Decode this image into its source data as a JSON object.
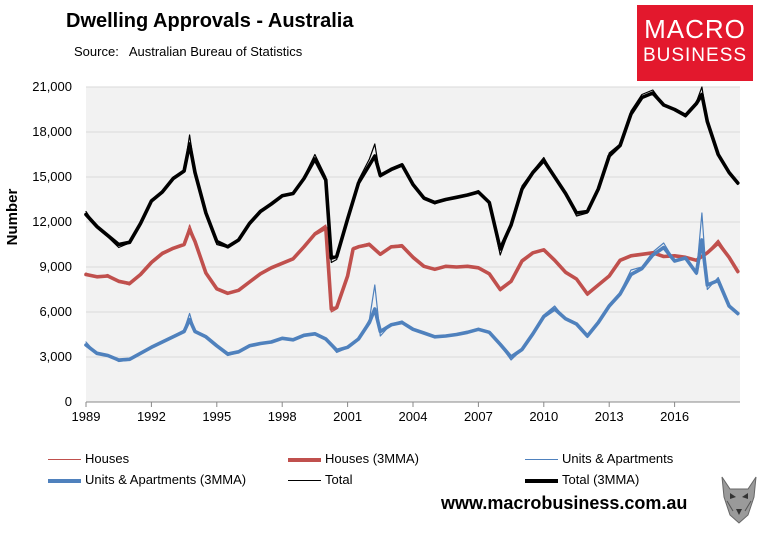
{
  "header": {
    "title": "Dwelling Approvals - Australia",
    "source_label": "Source:",
    "source_value": "Australian Bureau of Statistics"
  },
  "logo": {
    "line1": "MACRO",
    "line2": "BUSINESS"
  },
  "footer": {
    "url": "www.macrobusiness.com.au"
  },
  "colors": {
    "houses": "#c0504d",
    "units": "#4f81bd",
    "total": "#000000",
    "plot_bg": "#f2f2f2"
  },
  "chart_data": {
    "type": "line",
    "title": "Dwelling Approvals - Australia",
    "ylabel": "Number",
    "xlabel": "",
    "xlim": [
      1989.0,
      2019.0
    ],
    "ylim": [
      0,
      21000
    ],
    "yticks": [
      0,
      3000,
      6000,
      9000,
      12000,
      15000,
      18000,
      21000
    ],
    "ytick_labels": [
      "0",
      "3,000",
      "6,000",
      "9,000",
      "12,000",
      "15,000",
      "18,000",
      "21,000"
    ],
    "xticks": [
      1989,
      1992,
      1995,
      1998,
      2001,
      2004,
      2007,
      2010,
      2013,
      2016
    ],
    "xtick_labels": [
      "1989",
      "1992",
      "1995",
      "1998",
      "2001",
      "2004",
      "2007",
      "2010",
      "2013",
      "2016"
    ],
    "legend_position": "bottom",
    "legend": [
      "Houses",
      "Houses (3MMA)",
      "Units & Apartments",
      "Units & Apartments (3MMA)",
      "Total",
      "Total (3MMA)"
    ],
    "series": [
      {
        "name": "Houses",
        "color": "#c0504d",
        "width": 1.2,
        "x": [
          1989.0,
          1989.5,
          1990.0,
          1990.5,
          1991.0,
          1991.5,
          1992.0,
          1992.5,
          1993.0,
          1993.5,
          1993.75,
          1994.0,
          1994.5,
          1995.0,
          1995.5,
          1996.0,
          1996.5,
          1997.0,
          1997.5,
          1998.0,
          1998.5,
          1999.0,
          1999.5,
          2000.0,
          2000.25,
          2000.5,
          2001.0,
          2001.25,
          2001.5,
          2002.0,
          2002.5,
          2003.0,
          2003.5,
          2004.0,
          2004.5,
          2005.0,
          2005.5,
          2006.0,
          2006.5,
          2007.0,
          2007.5,
          2008.0,
          2008.5,
          2009.0,
          2009.5,
          2010.0,
          2010.5,
          2011.0,
          2011.5,
          2012.0,
          2012.5,
          2013.0,
          2013.5,
          2014.0,
          2014.5,
          2015.0,
          2015.5,
          2016.0,
          2016.5,
          2017.0,
          2017.5,
          2018.0,
          2018.5,
          2018.9
        ],
        "values": [
          8600,
          8300,
          8500,
          8000,
          7800,
          8600,
          9400,
          10000,
          10300,
          10500,
          11800,
          10800,
          8500,
          7500,
          7200,
          7400,
          8000,
          8600,
          9000,
          9300,
          9600,
          10400,
          11300,
          11800,
          6000,
          6200,
          8500,
          10300,
          10400,
          10600,
          9800,
          10400,
          10500,
          9600,
          9000,
          8800,
          9100,
          9000,
          9100,
          9000,
          8600,
          7400,
          8100,
          9500,
          10000,
          10200,
          9400,
          8600,
          8200,
          7100,
          7800,
          8400,
          9500,
          9800,
          9900,
          10000,
          9700,
          9800,
          9700,
          9400,
          10000,
          10800,
          9700,
          8600
        ]
      },
      {
        "name": "Houses (3MMA)",
        "color": "#c0504d",
        "width": 3.6,
        "x": [
          1989.0,
          1989.5,
          1990.0,
          1990.5,
          1991.0,
          1991.5,
          1992.0,
          1992.5,
          1993.0,
          1993.5,
          1993.75,
          1994.0,
          1994.5,
          1995.0,
          1995.5,
          1996.0,
          1996.5,
          1997.0,
          1997.5,
          1998.0,
          1998.5,
          1999.0,
          1999.5,
          2000.0,
          2000.25,
          2000.5,
          2001.0,
          2001.25,
          2001.5,
          2002.0,
          2002.5,
          2003.0,
          2003.5,
          2004.0,
          2004.5,
          2005.0,
          2005.5,
          2006.0,
          2006.5,
          2007.0,
          2007.5,
          2008.0,
          2008.5,
          2009.0,
          2009.5,
          2010.0,
          2010.5,
          2011.0,
          2011.5,
          2012.0,
          2012.5,
          2013.0,
          2013.5,
          2014.0,
          2014.5,
          2015.0,
          2015.5,
          2016.0,
          2016.5,
          2017.0,
          2017.5,
          2018.0,
          2018.5,
          2018.9
        ],
        "values": [
          8500,
          8350,
          8400,
          8050,
          7900,
          8500,
          9300,
          9900,
          10250,
          10500,
          11500,
          10700,
          8600,
          7550,
          7250,
          7450,
          8000,
          8550,
          8950,
          9250,
          9550,
          10350,
          11200,
          11600,
          6200,
          6300,
          8400,
          10200,
          10350,
          10500,
          9850,
          10350,
          10400,
          9650,
          9050,
          8850,
          9050,
          9000,
          9050,
          8950,
          8550,
          7500,
          8050,
          9400,
          9950,
          10150,
          9450,
          8650,
          8200,
          7200,
          7800,
          8400,
          9450,
          9750,
          9850,
          9950,
          9700,
          9750,
          9650,
          9450,
          9950,
          10600,
          9650,
          8700
        ]
      },
      {
        "name": "Units & Apartments",
        "color": "#4f81bd",
        "width": 1.2,
        "x": [
          1989.0,
          1989.5,
          1990.0,
          1990.5,
          1991.0,
          1991.5,
          1992.0,
          1992.5,
          1993.0,
          1993.5,
          1993.75,
          1994.0,
          1994.5,
          1995.0,
          1995.5,
          1996.0,
          1996.5,
          1997.0,
          1997.5,
          1998.0,
          1998.5,
          1999.0,
          1999.5,
          2000.0,
          2000.5,
          2001.0,
          2001.5,
          2002.0,
          2002.25,
          2002.5,
          2003.0,
          2003.5,
          2004.0,
          2004.5,
          2005.0,
          2005.5,
          2006.0,
          2006.5,
          2007.0,
          2007.5,
          2008.0,
          2008.5,
          2009.0,
          2009.5,
          2010.0,
          2010.5,
          2011.0,
          2011.5,
          2012.0,
          2012.5,
          2013.0,
          2013.5,
          2014.0,
          2014.5,
          2015.0,
          2015.5,
          2016.0,
          2016.5,
          2017.0,
          2017.25,
          2017.5,
          2018.0,
          2018.5,
          2018.9
        ],
        "values": [
          4000,
          3200,
          3100,
          2700,
          2800,
          3300,
          3700,
          4000,
          4400,
          4800,
          5900,
          4700,
          4400,
          3700,
          3100,
          3300,
          3800,
          3900,
          4000,
          4300,
          4100,
          4500,
          4600,
          4200,
          3300,
          3600,
          4200,
          5500,
          7800,
          4400,
          5200,
          5400,
          4800,
          4600,
          4300,
          4400,
          4500,
          4700,
          4900,
          4700,
          3800,
          2800,
          3500,
          4600,
          5800,
          6400,
          5500,
          5200,
          4300,
          5300,
          6500,
          7300,
          8800,
          9000,
          10000,
          10600,
          9400,
          9700,
          8500,
          12600,
          7500,
          8300,
          6500,
          5800
        ]
      },
      {
        "name": "Units & Apartments (3MMA)",
        "color": "#4f81bd",
        "width": 3.6,
        "x": [
          1989.0,
          1989.5,
          1990.0,
          1990.5,
          1991.0,
          1991.5,
          1992.0,
          1992.5,
          1993.0,
          1993.5,
          1993.75,
          1994.0,
          1994.5,
          1995.0,
          1995.5,
          1996.0,
          1996.5,
          1997.0,
          1997.5,
          1998.0,
          1998.5,
          1999.0,
          1999.5,
          2000.0,
          2000.5,
          2001.0,
          2001.5,
          2002.0,
          2002.25,
          2002.5,
          2003.0,
          2003.5,
          2004.0,
          2004.5,
          2005.0,
          2005.5,
          2006.0,
          2006.5,
          2007.0,
          2007.5,
          2008.0,
          2008.5,
          2009.0,
          2009.5,
          2010.0,
          2010.5,
          2011.0,
          2011.5,
          2012.0,
          2012.5,
          2013.0,
          2013.5,
          2014.0,
          2014.5,
          2015.0,
          2015.5,
          2016.0,
          2016.5,
          2017.0,
          2017.25,
          2017.5,
          2018.0,
          2018.5,
          2018.9
        ],
        "values": [
          3800,
          3250,
          3100,
          2800,
          2850,
          3250,
          3650,
          4000,
          4350,
          4700,
          5500,
          4700,
          4350,
          3750,
          3200,
          3350,
          3750,
          3900,
          4000,
          4250,
          4150,
          4450,
          4550,
          4200,
          3450,
          3650,
          4200,
          5300,
          6200,
          4700,
          5150,
          5300,
          4850,
          4600,
          4350,
          4400,
          4500,
          4650,
          4850,
          4650,
          3850,
          3000,
          3500,
          4550,
          5700,
          6200,
          5550,
          5200,
          4400,
          5300,
          6400,
          7200,
          8500,
          8900,
          9800,
          10300,
          9400,
          9600,
          8600,
          10800,
          7800,
          8100,
          6400,
          5900
        ]
      },
      {
        "name": "Total",
        "color": "#000000",
        "width": 1.2,
        "x": [
          1989.0,
          1989.5,
          1990.0,
          1990.5,
          1991.0,
          1991.5,
          1992.0,
          1992.5,
          1993.0,
          1993.5,
          1993.75,
          1994.0,
          1994.5,
          1995.0,
          1995.5,
          1996.0,
          1996.5,
          1997.0,
          1997.5,
          1998.0,
          1998.5,
          1999.0,
          1999.5,
          2000.0,
          2000.25,
          2000.5,
          2001.0,
          2001.5,
          2002.0,
          2002.25,
          2002.5,
          2003.0,
          2003.5,
          2004.0,
          2004.5,
          2005.0,
          2005.5,
          2006.0,
          2006.5,
          2007.0,
          2007.5,
          2008.0,
          2008.5,
          2009.0,
          2009.5,
          2010.0,
          2010.5,
          2011.0,
          2011.5,
          2012.0,
          2012.5,
          2013.0,
          2013.5,
          2014.0,
          2014.5,
          2015.0,
          2015.5,
          2016.0,
          2016.5,
          2017.0,
          2017.25,
          2017.5,
          2018.0,
          2018.5,
          2018.9
        ],
        "values": [
          12700,
          11600,
          11000,
          10300,
          10600,
          12000,
          13500,
          14000,
          15000,
          15400,
          17800,
          15300,
          12500,
          10500,
          10300,
          10800,
          12000,
          12800,
          13200,
          13800,
          13900,
          15000,
          16500,
          15000,
          9300,
          9500,
          12300,
          14800,
          16200,
          17200,
          15000,
          15600,
          15900,
          14400,
          13500,
          13200,
          13500,
          13700,
          13800,
          14100,
          13300,
          9800,
          11800,
          14400,
          15400,
          16300,
          15000,
          13900,
          12400,
          12600,
          14300,
          16600,
          17200,
          19400,
          20500,
          20800,
          19800,
          19500,
          19000,
          20000,
          21000,
          18700,
          16400,
          15200,
          14500
        ]
      },
      {
        "name": "Total (3MMA)",
        "color": "#000000",
        "width": 3.6,
        "x": [
          1989.0,
          1989.5,
          1990.0,
          1990.5,
          1991.0,
          1991.5,
          1992.0,
          1992.5,
          1993.0,
          1993.5,
          1993.75,
          1994.0,
          1994.5,
          1995.0,
          1995.5,
          1996.0,
          1996.5,
          1997.0,
          1997.5,
          1998.0,
          1998.5,
          1999.0,
          1999.5,
          2000.0,
          2000.25,
          2000.5,
          2001.0,
          2001.5,
          2002.0,
          2002.25,
          2002.5,
          2003.0,
          2003.5,
          2004.0,
          2004.5,
          2005.0,
          2005.5,
          2006.0,
          2006.5,
          2007.0,
          2007.5,
          2008.0,
          2008.5,
          2009.0,
          2009.5,
          2010.0,
          2010.5,
          2011.0,
          2011.5,
          2012.0,
          2012.5,
          2013.0,
          2013.5,
          2014.0,
          2014.5,
          2015.0,
          2015.5,
          2016.0,
          2016.5,
          2017.0,
          2017.25,
          2017.5,
          2018.0,
          2018.5,
          2018.9
        ],
        "values": [
          12500,
          11700,
          11100,
          10500,
          10650,
          11900,
          13400,
          14000,
          14900,
          15400,
          17200,
          15300,
          12600,
          10700,
          10350,
          10800,
          11900,
          12700,
          13200,
          13750,
          13900,
          14900,
          16200,
          14800,
          9600,
          9700,
          12200,
          14600,
          15800,
          16400,
          15100,
          15500,
          15800,
          14500,
          13600,
          13300,
          13500,
          13650,
          13800,
          14000,
          13300,
          10200,
          11800,
          14200,
          15300,
          16100,
          15000,
          13900,
          12600,
          12700,
          14200,
          16400,
          17100,
          19200,
          20300,
          20600,
          19800,
          19500,
          19100,
          19900,
          20500,
          18700,
          16500,
          15300,
          14600
        ]
      }
    ]
  }
}
